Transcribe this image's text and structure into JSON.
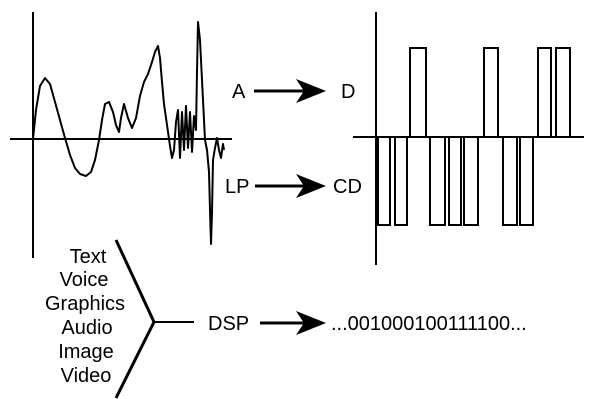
{
  "colors": {
    "ink": "#000000",
    "background": "#ffffff"
  },
  "conversions": [
    {
      "from": "A",
      "to": "D"
    },
    {
      "from": "LP",
      "to": "CD"
    }
  ],
  "media_types": [
    "Text",
    "Voice",
    "Graphics",
    "Audio",
    "Image",
    "Video"
  ],
  "processing": {
    "label": "DSP",
    "output": "...001000100111100..."
  },
  "icons": {
    "arrow": "right-arrow-icon"
  }
}
